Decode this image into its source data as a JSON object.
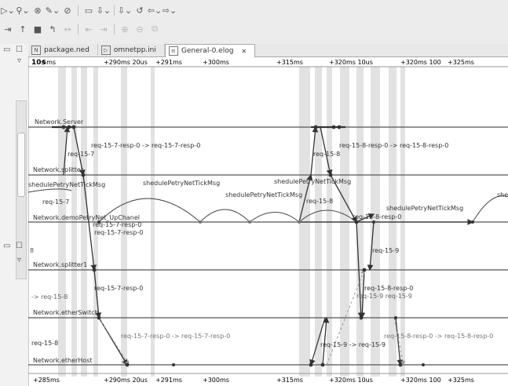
{
  "tabs": [
    {
      "label": "package.ned",
      "icon": "ned-file-icon",
      "active": false
    },
    {
      "label": "omnetpp.ini",
      "icon": "ini-file-icon",
      "active": false
    },
    {
      "label": "General-0.elog",
      "icon": "elog-file-icon",
      "active": true,
      "close": "✕"
    }
  ],
  "toolbar": {
    "row1": [
      "▷⌄",
      "⚲⌄",
      "⊗",
      "✎⌄",
      "⊘",
      "▭",
      "⇩⌄",
      "⇩⌄",
      "↺",
      "⇦⌄",
      "⇨⌄"
    ],
    "row2": [
      "⇥",
      "↑",
      "■",
      "↰",
      "↔",
      "⇤",
      "⇥",
      "⊕",
      "⊖",
      "⧉"
    ]
  },
  "timeline": {
    "top_labels": [
      "10s",
      "5ms",
      "+290ms 20us",
      "+291ms",
      "+300ms",
      "+315ms",
      "+320ms 10us",
      "+320ms 100",
      "+325ms"
    ],
    "bottom_labels": [
      "+285ms",
      "+290ms 20us",
      "+291ms",
      "+300ms",
      "+315ms",
      "+320ms 10us",
      "+320ms 100",
      "+325ms"
    ]
  },
  "axes": [
    {
      "name": "Network.Server"
    },
    {
      "name": "Network.splitter"
    },
    {
      "name": "Network.demoPetryNet_UpChanel"
    },
    {
      "name": "Network.splitter1"
    },
    {
      "name": "Network.etherSwitch"
    },
    {
      "name": "Network.etherHost"
    }
  ],
  "messages": {
    "m1": "req-15-7",
    "m2": "req-15-7-resp-0",
    "m3": "req-15-7-resp-0 -> req-15-7-resp-0",
    "m4": "shedulePetryNetTickMsg",
    "m5": "req-15-7",
    "m6": "req-15-7-resp-0",
    "m7": "req-15-7-resp-0",
    "m8": "-> req-15-8",
    "m9": "req-15-8",
    "m10": "req-15-7-resp-0 -> req-15-7-resp-0",
    "m11": "req-15-8",
    "m12": "req-15-8-resp-0 -> req-15-8-resp-0",
    "m13": "shedulePetryNetTickMsg",
    "m14": "shedulePetryNetTickMsg",
    "m15": "shedulePetryNetTickMsg",
    "m16": "req-15-8",
    "m17": "req-15-8-resp-0",
    "m18": "req-15-9",
    "m19": "req-15-8-resp-0",
    "m20": "req-15-9 req-15-9",
    "m21": "req-15-9 -> req-15-9",
    "m22": "req-15-8-resp-0 -> req-15-8-resp-0",
    "m23": "shedulePetryNetTickMsg",
    "m24": "ulePetryNetTickMsg",
    "m25": "she",
    "m26": "req-15-8-resp-0 -> req-15-8-resp-0",
    "m27": "req-15-8",
    "m28": "req-15-9"
  }
}
